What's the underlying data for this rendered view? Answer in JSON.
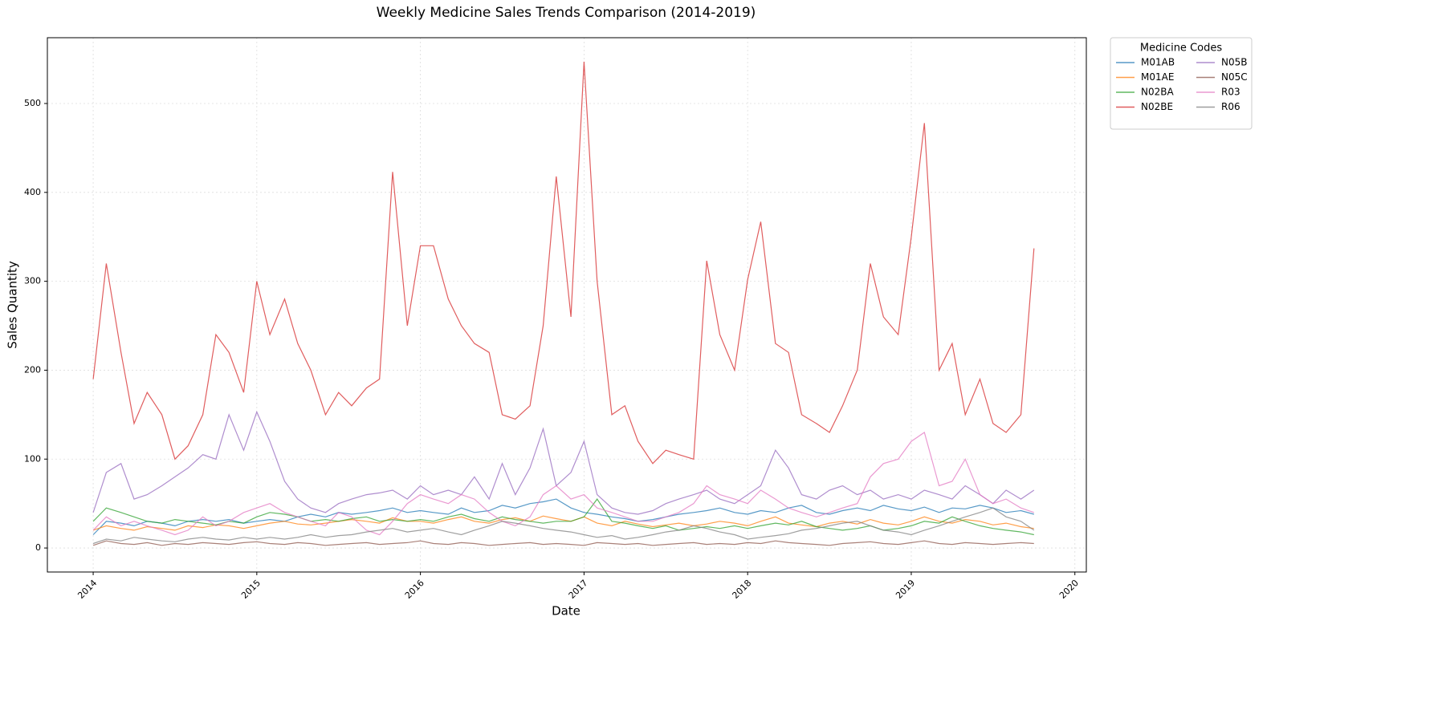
{
  "chart_data": {
    "type": "line",
    "title": "Weekly Medicine Sales Trends Comparison (2014-2019)",
    "x_label": "Date",
    "y_label": "Sales Quantity",
    "legend_title": "Medicine Codes",
    "legend": "outside upper right",
    "grid": true,
    "xlim": [
      2013.72,
      2020.07
    ],
    "xticks": [
      2014,
      2015,
      2016,
      2017,
      2018,
      2019,
      2020
    ],
    "ylim": [
      -27,
      574
    ],
    "yticks": [
      0,
      100,
      200,
      300,
      400,
      500
    ],
    "x": [
      2014,
      2014.08,
      2014.17,
      2014.25,
      2014.33,
      2014.42,
      2014.5,
      2014.58,
      2014.67,
      2014.75,
      2014.83,
      2014.92,
      2015,
      2015.08,
      2015.17,
      2015.25,
      2015.33,
      2015.42,
      2015.5,
      2015.58,
      2015.67,
      2015.75,
      2015.83,
      2015.92,
      2016,
      2016.08,
      2016.17,
      2016.25,
      2016.33,
      2016.42,
      2016.5,
      2016.58,
      2016.67,
      2016.75,
      2016.83,
      2016.92,
      2017,
      2017.08,
      2017.17,
      2017.25,
      2017.33,
      2017.42,
      2017.5,
      2017.58,
      2017.67,
      2017.75,
      2017.83,
      2017.92,
      2018,
      2018.08,
      2018.17,
      2018.25,
      2018.33,
      2018.42,
      2018.5,
      2018.58,
      2018.67,
      2018.75,
      2018.83,
      2018.92,
      2019,
      2019.08,
      2019.17,
      2019.25,
      2019.33,
      2019.42,
      2019.5,
      2019.58,
      2019.67,
      2019.75
    ],
    "series": [
      {
        "name": "M01AB",
        "color": "#1f77b4",
        "values": [
          15,
          30,
          28,
          25,
          30,
          28,
          25,
          30,
          32,
          30,
          32,
          28,
          30,
          32,
          30,
          35,
          38,
          35,
          40,
          38,
          40,
          42,
          45,
          40,
          42,
          40,
          38,
          45,
          40,
          42,
          48,
          45,
          50,
          52,
          55,
          45,
          40,
          38,
          35,
          33,
          30,
          32,
          35,
          38,
          40,
          42,
          45,
          40,
          38,
          42,
          40,
          45,
          48,
          40,
          38,
          42,
          45,
          42,
          48,
          44,
          42,
          46,
          40,
          45,
          44,
          48,
          45,
          40,
          42,
          38
        ]
      },
      {
        "name": "M01AE",
        "color": "#ff7f0e",
        "values": [
          20,
          25,
          22,
          20,
          24,
          22,
          20,
          25,
          23,
          26,
          25,
          22,
          25,
          28,
          30,
          27,
          26,
          28,
          30,
          32,
          30,
          28,
          34,
          30,
          30,
          28,
          32,
          35,
          30,
          28,
          32,
          34,
          30,
          36,
          33,
          30,
          35,
          28,
          25,
          30,
          27,
          24,
          26,
          28,
          25,
          27,
          30,
          28,
          25,
          30,
          35,
          28,
          26,
          24,
          28,
          30,
          27,
          32,
          28,
          26,
          30,
          35,
          30,
          28,
          32,
          30,
          26,
          28,
          24,
          22
        ]
      },
      {
        "name": "N02BA",
        "color": "#2ca02c",
        "values": [
          30,
          45,
          40,
          35,
          30,
          28,
          32,
          30,
          28,
          26,
          30,
          28,
          35,
          40,
          38,
          35,
          30,
          32,
          30,
          33,
          35,
          30,
          32,
          30,
          32,
          30,
          35,
          38,
          33,
          30,
          35,
          32,
          30,
          28,
          30,
          30,
          35,
          55,
          30,
          28,
          25,
          22,
          25,
          20,
          22,
          24,
          22,
          25,
          22,
          25,
          28,
          26,
          30,
          24,
          22,
          20,
          22,
          25,
          20,
          22,
          25,
          30,
          28,
          35,
          30,
          25,
          22,
          20,
          18,
          15
        ]
      },
      {
        "name": "N02BE",
        "color": "#d62728",
        "values": [
          190,
          320,
          220,
          140,
          175,
          150,
          100,
          115,
          150,
          240,
          220,
          175,
          300,
          240,
          280,
          230,
          200,
          150,
          175,
          160,
          180,
          190,
          423,
          250,
          340,
          340,
          280,
          250,
          230,
          220,
          150,
          145,
          160,
          250,
          418,
          260,
          547,
          300,
          150,
          160,
          120,
          95,
          110,
          105,
          100,
          323,
          240,
          200,
          302,
          367,
          230,
          220,
          150,
          140,
          130,
          160,
          200,
          320,
          260,
          240,
          350,
          478,
          200,
          230,
          150,
          190,
          140,
          130,
          150,
          337
        ]
      },
      {
        "name": "N05B",
        "color": "#9467bd",
        "values": [
          40,
          85,
          95,
          55,
          60,
          70,
          80,
          90,
          105,
          100,
          150,
          110,
          153,
          120,
          75,
          55,
          45,
          40,
          50,
          55,
          60,
          62,
          65,
          55,
          70,
          60,
          65,
          60,
          80,
          55,
          95,
          60,
          90,
          134,
          70,
          85,
          120,
          60,
          45,
          40,
          38,
          42,
          50,
          55,
          60,
          65,
          55,
          50,
          60,
          70,
          110,
          90,
          60,
          55,
          65,
          70,
          60,
          65,
          55,
          60,
          55,
          65,
          60,
          55,
          70,
          60,
          50,
          65,
          55,
          65
        ]
      },
      {
        "name": "N05C",
        "color": "#8c564b",
        "values": [
          3,
          8,
          5,
          4,
          6,
          3,
          5,
          4,
          6,
          5,
          4,
          6,
          7,
          5,
          4,
          6,
          5,
          3,
          4,
          5,
          6,
          4,
          5,
          6,
          8,
          5,
          4,
          6,
          5,
          3,
          4,
          5,
          6,
          4,
          5,
          4,
          3,
          6,
          5,
          4,
          5,
          3,
          4,
          5,
          6,
          4,
          5,
          4,
          6,
          5,
          8,
          6,
          5,
          4,
          3,
          5,
          6,
          7,
          5,
          4,
          6,
          8,
          5,
          4,
          6,
          5,
          4,
          5,
          6,
          5
        ]
      },
      {
        "name": "R03",
        "color": "#e377c2",
        "values": [
          20,
          35,
          25,
          30,
          25,
          20,
          15,
          20,
          35,
          25,
          30,
          40,
          45,
          50,
          40,
          35,
          30,
          25,
          40,
          35,
          20,
          15,
          30,
          50,
          60,
          55,
          50,
          60,
          55,
          40,
          30,
          25,
          35,
          60,
          70,
          55,
          60,
          45,
          40,
          35,
          30,
          30,
          35,
          40,
          50,
          70,
          60,
          55,
          50,
          65,
          55,
          45,
          40,
          35,
          40,
          45,
          50,
          80,
          95,
          100,
          120,
          130,
          70,
          75,
          100,
          60,
          50,
          55,
          45,
          40
        ]
      },
      {
        "name": "R06",
        "color": "#7f7f7f",
        "values": [
          5,
          10,
          8,
          12,
          10,
          8,
          7,
          10,
          12,
          10,
          9,
          12,
          10,
          12,
          10,
          12,
          15,
          12,
          14,
          15,
          18,
          20,
          22,
          18,
          20,
          22,
          18,
          15,
          20,
          25,
          30,
          28,
          25,
          22,
          20,
          18,
          15,
          12,
          14,
          10,
          12,
          15,
          18,
          20,
          25,
          22,
          18,
          15,
          10,
          12,
          14,
          16,
          20,
          22,
          25,
          28,
          30,
          25,
          20,
          18,
          15,
          20,
          25,
          30,
          35,
          40,
          45,
          35,
          30,
          20
        ]
      }
    ]
  }
}
